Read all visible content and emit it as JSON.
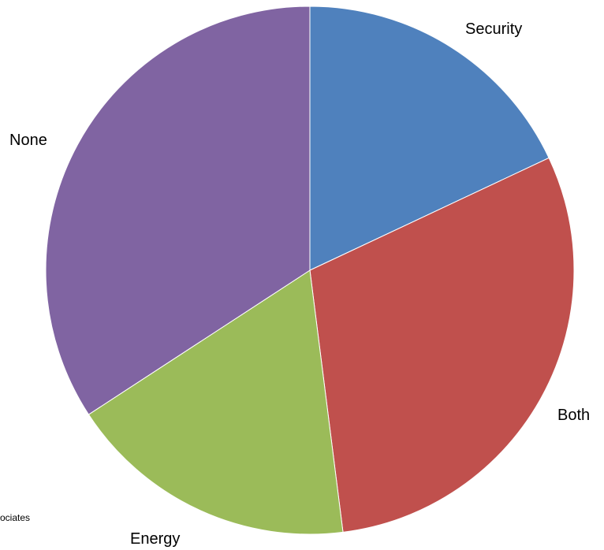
{
  "chart_data": {
    "type": "pie",
    "start_angle_deg": 0,
    "direction": "clockwise",
    "slices": [
      {
        "label": "Security",
        "value": 18.0,
        "color": "#4F81BD"
      },
      {
        "label": "Both",
        "value": 30.0,
        "color": "#C0504D"
      },
      {
        "label": "Energy",
        "value": 17.8,
        "color": "#9BBB59"
      },
      {
        "label": "None",
        "value": 34.2,
        "color": "#8064A2"
      }
    ],
    "source_note": "ociates"
  }
}
